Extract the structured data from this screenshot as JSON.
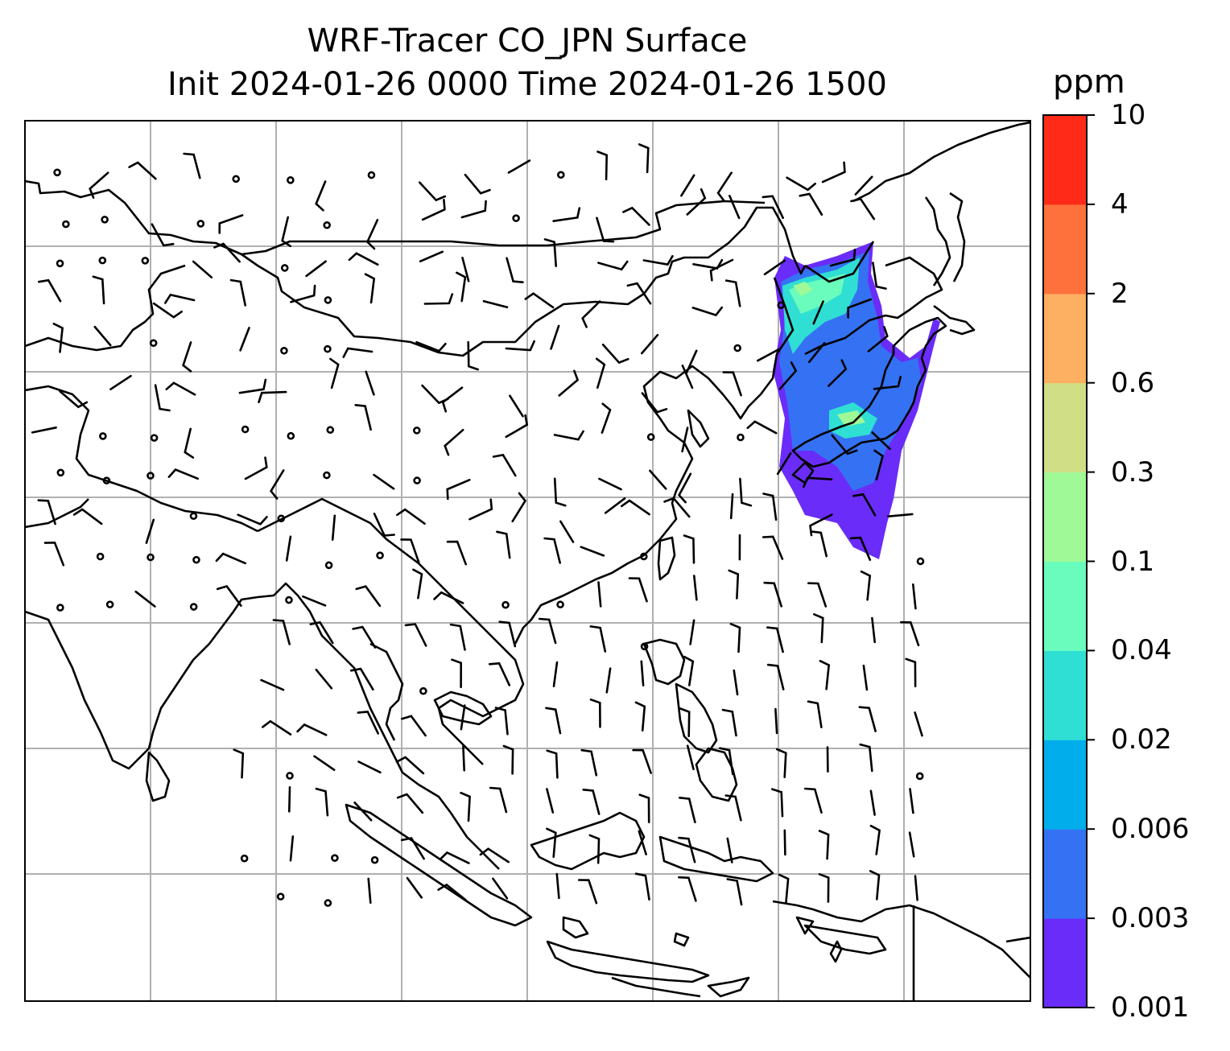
{
  "title_line1": "WRF-Tracer CO_JPN Surface",
  "title_line2": "Init 2024-01-26 0000 Time 2024-01-26 1500",
  "colorbar": {
    "unit": "ppm",
    "ticks": [
      "0.001",
      "0.003",
      "0.006",
      "0.02",
      "0.04",
      "0.1",
      "0.3",
      "0.6",
      "2",
      "4",
      "10"
    ],
    "colors": [
      "#6a2cf8",
      "#3472f3",
      "#01aeeb",
      "#30dfd3",
      "#69fcbd",
      "#9ef996",
      "#d0df86",
      "#fdaf62",
      "#fe703c",
      "#ff2b18"
    ]
  },
  "map": {
    "plume_colors": {
      "low": "#6a2cf8",
      "mid": "#3472f3",
      "high": "#69fcbd",
      "peak": "#9ef996"
    },
    "gridline_color": "#b0b0b0"
  }
}
